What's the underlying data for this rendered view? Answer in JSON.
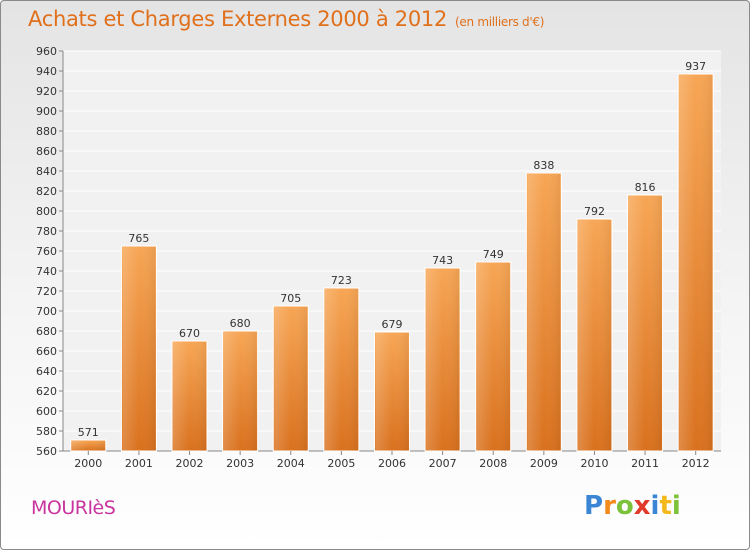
{
  "header": {
    "title": "Achats et Charges Externes 2000 à 2012",
    "subtitle": "(en milliers d'€)"
  },
  "footer": {
    "town": "MOURIèS",
    "logo_letters": [
      {
        "ch": "P",
        "color": "#3a86d4"
      },
      {
        "ch": "r",
        "color": "#f28a1c"
      },
      {
        "ch": "o",
        "color": "#7cc23a"
      },
      {
        "ch": "x",
        "color": "#e23a2a"
      },
      {
        "ch": "i",
        "color": "#3a86d4"
      },
      {
        "ch": "t",
        "color": "#f2b81c"
      },
      {
        "ch": "i",
        "color": "#7cc23a"
      }
    ]
  },
  "colors": {
    "bar_light": "#f7a655",
    "bar_dark": "#d9711e",
    "title": "#e0701b",
    "town": "#c8359e"
  },
  "chart_data": {
    "type": "bar",
    "categories": [
      "2000",
      "2001",
      "2002",
      "2003",
      "2004",
      "2005",
      "2006",
      "2007",
      "2008",
      "2009",
      "2010",
      "2011",
      "2012"
    ],
    "values": [
      571,
      765,
      670,
      680,
      705,
      723,
      679,
      743,
      749,
      838,
      792,
      816,
      937
    ],
    "ylim": [
      560,
      960
    ],
    "ytick_step": 20,
    "grid": true
  }
}
